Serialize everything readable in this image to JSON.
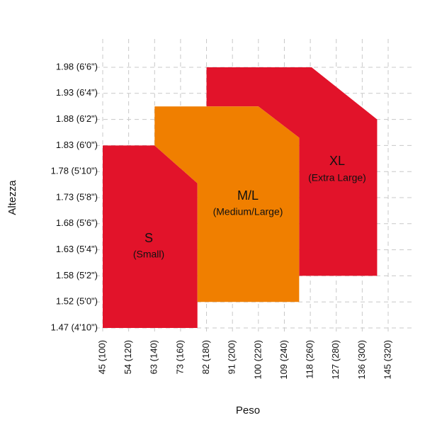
{
  "chart_data": {
    "type": "region",
    "x_label": "Peso",
    "y_label": "Altezza",
    "xlim": [
      100,
      320
    ],
    "ylim": [
      58,
      78
    ],
    "xticks": [
      {
        "value": 100,
        "label": "45 (100)"
      },
      {
        "value": 120,
        "label": "54 (120)"
      },
      {
        "value": 140,
        "label": "63 (140)"
      },
      {
        "value": 160,
        "label": "73 (160)"
      },
      {
        "value": 180,
        "label": "82 (180)"
      },
      {
        "value": 200,
        "label": "91 (200)"
      },
      {
        "value": 220,
        "label": "100 (220)"
      },
      {
        "value": 240,
        "label": "109 (240)"
      },
      {
        "value": 260,
        "label": "118 (260)"
      },
      {
        "value": 280,
        "label": "127 (280)"
      },
      {
        "value": 300,
        "label": "136 (300)"
      },
      {
        "value": 320,
        "label": "145 (320)"
      }
    ],
    "yticks": [
      {
        "value": 58,
        "label": "1.47 (4'10\")"
      },
      {
        "value": 60,
        "label": "1.52 (5'0\")"
      },
      {
        "value": 62,
        "label": "1.58 (5'2\")"
      },
      {
        "value": 64,
        "label": "1.63 (5'4\")"
      },
      {
        "value": 66,
        "label": "1.68 (5'6\")"
      },
      {
        "value": 68,
        "label": "1.73 (5'8\")"
      },
      {
        "value": 70,
        "label": "1.78 (5'10\")"
      },
      {
        "value": 72,
        "label": "1.83 (6'0\")"
      },
      {
        "value": 74,
        "label": "1.88 (6'2\")"
      },
      {
        "value": 76,
        "label": "1.93 (6'4\")"
      },
      {
        "value": 78,
        "label": "1.98 (6'6\")"
      }
    ],
    "grid": true,
    "regions": [
      {
        "name": "S",
        "subtitle": "(Small)",
        "color": "#e2132a",
        "x": [
          100,
          140,
          173,
          173,
          100
        ],
        "y": [
          72,
          72,
          69.1,
          58,
          58
        ]
      },
      {
        "name": "XL",
        "subtitle": "(Extra Large)",
        "color": "#e2132a",
        "x": [
          180,
          261,
          311.5,
          311.5,
          251.4,
          251.4,
          220,
          180
        ],
        "y": [
          78,
          78,
          74,
          62,
          62,
          72.6,
          75,
          75
        ]
      },
      {
        "name": "M/L",
        "subtitle": "(Medium/Large)",
        "color": "#f07f00",
        "x": [
          140,
          220,
          251.4,
          251.4,
          173,
          173,
          140
        ],
        "y": [
          75,
          75,
          72.6,
          60,
          60,
          69.1,
          72
        ]
      }
    ]
  }
}
